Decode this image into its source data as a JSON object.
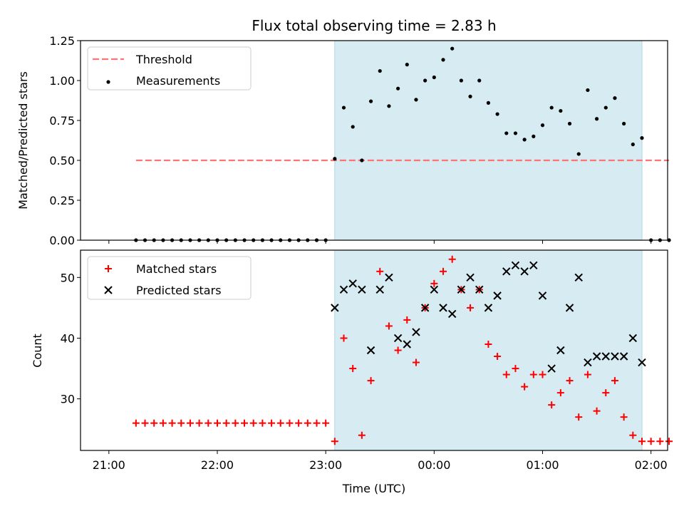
{
  "chart_data": {
    "title": "Flux total observing time = 2.83 h",
    "xlabel": "Time (UTC)",
    "x_ticks": [
      "21:00",
      "22:00",
      "23:00",
      "00:00",
      "01:00",
      "02:00"
    ],
    "observing_window": [
      "23:05",
      "01:55"
    ],
    "observing_color": "#add8e6",
    "panels": [
      {
        "type": "scatter",
        "ylabel": "Matched/Predicted stars",
        "ylim": [
          0.0,
          1.25
        ],
        "y_ticks": [
          "0.00",
          "0.25",
          "0.50",
          "0.75",
          "1.00",
          "1.25"
        ],
        "threshold": {
          "name": "Threshold",
          "value": 0.5,
          "x_range": [
            "21:15",
            "02:10"
          ],
          "color": "#ff7373"
        },
        "series": [
          {
            "name": "Measurements",
            "color": "#000000",
            "x": [
              "21:15",
              "21:20",
              "21:25",
              "21:30",
              "21:35",
              "21:40",
              "21:45",
              "21:50",
              "21:55",
              "22:00",
              "22:05",
              "22:10",
              "22:15",
              "22:20",
              "22:25",
              "22:30",
              "22:35",
              "22:40",
              "22:45",
              "22:50",
              "22:55",
              "23:00",
              "23:05",
              "23:10",
              "23:15",
              "23:20",
              "23:25",
              "23:30",
              "23:35",
              "23:40",
              "23:45",
              "23:50",
              "23:55",
              "00:00",
              "00:05",
              "00:10",
              "00:15",
              "00:20",
              "00:25",
              "00:30",
              "00:35",
              "00:40",
              "00:45",
              "00:50",
              "00:55",
              "01:00",
              "01:05",
              "01:10",
              "01:15",
              "01:20",
              "01:25",
              "01:30",
              "01:35",
              "01:40",
              "01:45",
              "01:50",
              "01:55",
              "02:00",
              "02:05",
              "02:10"
            ],
            "y": [
              0,
              0,
              0,
              0,
              0,
              0,
              0,
              0,
              0,
              0,
              0,
              0,
              0,
              0,
              0,
              0,
              0,
              0,
              0,
              0,
              0,
              0,
              0.51,
              0.83,
              0.71,
              0.5,
              0.87,
              1.06,
              0.84,
              0.95,
              1.1,
              0.88,
              1.0,
              1.02,
              1.13,
              1.2,
              1.0,
              0.9,
              1.0,
              0.86,
              0.79,
              0.67,
              0.67,
              0.63,
              0.65,
              0.72,
              0.83,
              0.81,
              0.73,
              0.54,
              0.94,
              0.76,
              0.83,
              0.89,
              0.73,
              0.6,
              0.64,
              0,
              0,
              0
            ]
          }
        ]
      },
      {
        "type": "scatter",
        "ylabel": "Count",
        "ylim": [
          21.5,
          54.5
        ],
        "y_ticks": [
          "30",
          "40",
          "50"
        ],
        "series": [
          {
            "name": "Matched stars",
            "color": "#ff0000",
            "marker": "+",
            "x": [
              "21:15",
              "21:20",
              "21:25",
              "21:30",
              "21:35",
              "21:40",
              "21:45",
              "21:50",
              "21:55",
              "22:00",
              "22:05",
              "22:10",
              "22:15",
              "22:20",
              "22:25",
              "22:30",
              "22:35",
              "22:40",
              "22:45",
              "22:50",
              "22:55",
              "23:00",
              "23:05",
              "23:10",
              "23:15",
              "23:20",
              "23:25",
              "23:30",
              "23:35",
              "23:40",
              "23:45",
              "23:50",
              "23:55",
              "00:00",
              "00:05",
              "00:10",
              "00:15",
              "00:20",
              "00:25",
              "00:30",
              "00:35",
              "00:40",
              "00:45",
              "00:50",
              "00:55",
              "01:00",
              "01:05",
              "01:10",
              "01:15",
              "01:20",
              "01:25",
              "01:30",
              "01:35",
              "01:40",
              "01:45",
              "01:50",
              "01:55",
              "02:00",
              "02:05",
              "02:10"
            ],
            "y": [
              26,
              26,
              26,
              26,
              26,
              26,
              26,
              26,
              26,
              26,
              26,
              26,
              26,
              26,
              26,
              26,
              26,
              26,
              26,
              26,
              26,
              26,
              23,
              40,
              35,
              24,
              33,
              51,
              42,
              38,
              43,
              36,
              45,
              49,
              51,
              53,
              48,
              45,
              48,
              39,
              37,
              34,
              35,
              32,
              34,
              34,
              29,
              31,
              33,
              27,
              34,
              28,
              31,
              33,
              27,
              24,
              23,
              23,
              23,
              23
            ]
          },
          {
            "name": "Predicted stars",
            "color": "#000000",
            "marker": "x",
            "x": [
              "23:05",
              "23:10",
              "23:15",
              "23:20",
              "23:25",
              "23:30",
              "23:35",
              "23:40",
              "23:45",
              "23:50",
              "23:55",
              "00:00",
              "00:05",
              "00:10",
              "00:15",
              "00:20",
              "00:25",
              "00:30",
              "00:35",
              "00:40",
              "00:45",
              "00:50",
              "00:55",
              "01:00",
              "01:05",
              "01:10",
              "01:15",
              "01:20",
              "01:25",
              "01:30",
              "01:35",
              "01:40",
              "01:45",
              "01:50",
              "01:55"
            ],
            "y": [
              45,
              48,
              49,
              48,
              38,
              48,
              50,
              40,
              39,
              41,
              45,
              48,
              45,
              44,
              48,
              50,
              48,
              45,
              47,
              51,
              52,
              51,
              52,
              47,
              35,
              38,
              45,
              50,
              36,
              37,
              37,
              37,
              37,
              40,
              36
            ]
          }
        ]
      }
    ]
  }
}
